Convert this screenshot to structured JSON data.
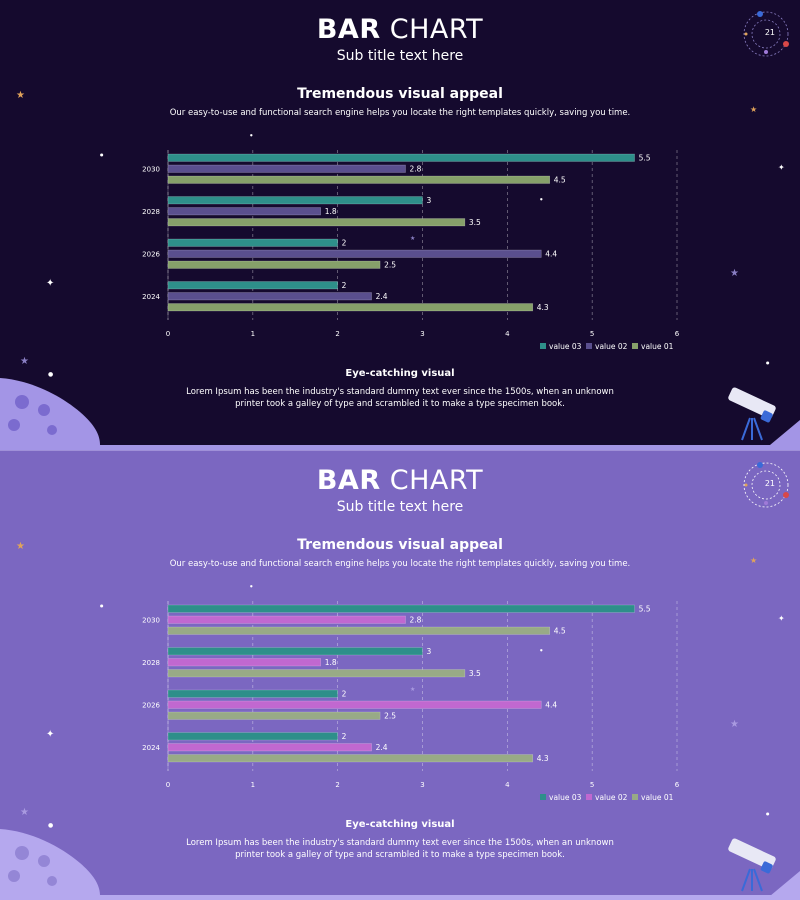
{
  "colors": {
    "dark_bg": "#150a2e",
    "light_bg": "#7b67c1",
    "value03": "#2e8f8a",
    "value02_dark": "#5a4f8e",
    "value02_light": "#c168d0",
    "value01": "#86a06a",
    "value01_light": "#98aa86"
  },
  "slides": [
    {
      "title_bold": "BAR",
      "title_rest": "CHART",
      "subtitle": "Sub title text here",
      "heading": "Tremendous visual appeal",
      "description": "Our easy-to-use and functional search engine helps you locate the right templates quickly, saving you time.",
      "footer_heading": "Eye-catching visual",
      "footer_text": "Lorem Ipsum has been the industry's standard dummy text ever since the 1500s, when an unknown printer took a galley of type and scrambled it to make a type specimen book.",
      "badge_number": "21",
      "theme": "dark"
    },
    {
      "title_bold": "BAR",
      "title_rest": "CHART",
      "subtitle": "Sub title text here",
      "heading": "Tremendous visual appeal",
      "description": "Our easy-to-use and functional search engine helps you locate the right templates quickly, saving you time.",
      "footer_heading": "Eye-catching visual",
      "footer_text": "Lorem Ipsum has been the industry's standard dummy text ever since the 1500s, when an unknown printer took a galley of type and scrambled it to make a type specimen book.",
      "badge_number": "21",
      "theme": "light"
    }
  ],
  "chart_data": [
    {
      "type": "bar",
      "orientation": "horizontal",
      "categories": [
        "2030",
        "2028",
        "2026",
        "2024"
      ],
      "series": [
        {
          "name": "value 03",
          "values": [
            5.5,
            3,
            2,
            2
          ]
        },
        {
          "name": "value 02",
          "values": [
            2.8,
            1.8,
            4.4,
            2.4
          ]
        },
        {
          "name": "value 01",
          "values": [
            4.5,
            3.5,
            2.5,
            4.3
          ]
        }
      ],
      "xlim": [
        0,
        6
      ],
      "xticks": [
        "0",
        "1",
        "2",
        "3",
        "4",
        "5",
        "6"
      ],
      "legend": [
        "value 03",
        "value 02",
        "value 01"
      ],
      "legend_position": "bottom-right",
      "grid": "vertical dashed"
    },
    {
      "type": "bar",
      "orientation": "horizontal",
      "categories": [
        "2030",
        "2028",
        "2026",
        "2024"
      ],
      "series": [
        {
          "name": "value 03",
          "values": [
            5.5,
            3,
            2,
            2
          ]
        },
        {
          "name": "value 02",
          "values": [
            2.8,
            1.8,
            4.4,
            2.4
          ]
        },
        {
          "name": "value 01",
          "values": [
            4.5,
            3.5,
            2.5,
            4.3
          ]
        }
      ],
      "xlim": [
        0,
        6
      ],
      "xticks": [
        "0",
        "1",
        "2",
        "3",
        "4",
        "5",
        "6"
      ],
      "legend": [
        "value 03",
        "value 02",
        "value 01"
      ],
      "legend_position": "bottom-right",
      "grid": "vertical dashed"
    }
  ]
}
